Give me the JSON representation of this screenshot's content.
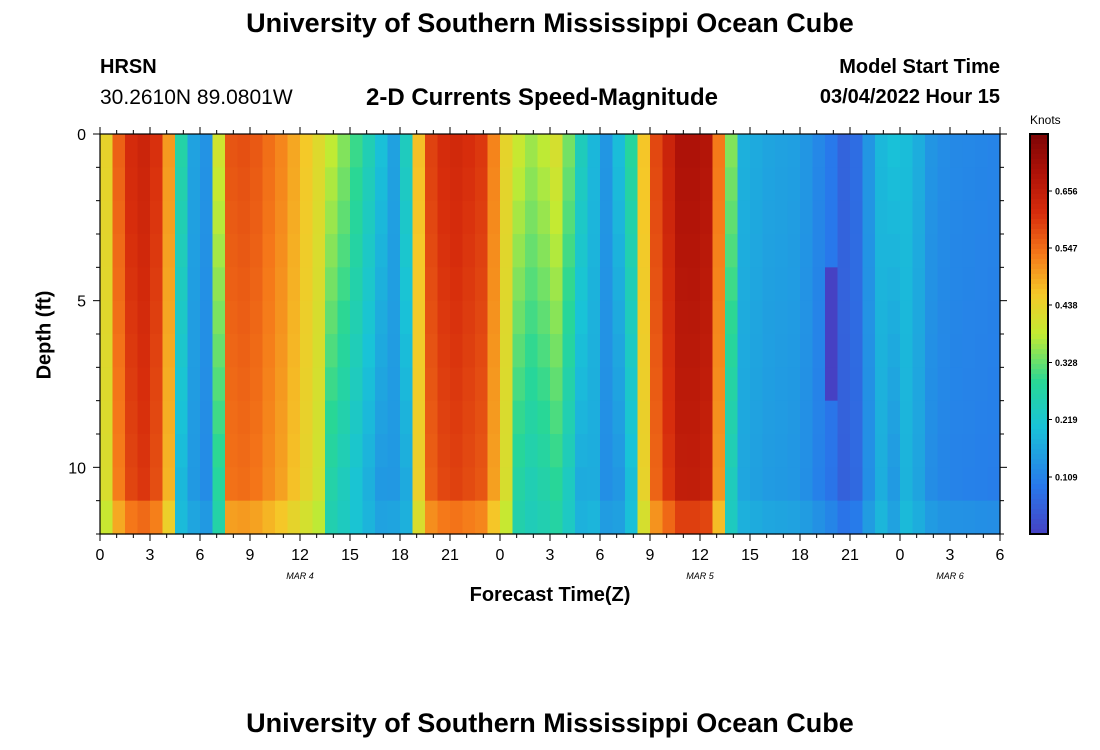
{
  "header": {
    "title": "University of Southern Mississippi Ocean Cube",
    "station": "HRSN",
    "coords": "30.2610N  89.0801W",
    "subtitle": "2-D Currents Speed-Magnitude",
    "model_label": "Model Start Time",
    "model_time": "03/04/2022 Hour 15"
  },
  "footer": {
    "title": "University of Southern Mississippi Ocean Cube"
  },
  "chart_data": {
    "type": "heatmap",
    "title": "2-D Currents Speed-Magnitude",
    "xlabel": "Forecast Time(Z)",
    "ylabel": "Depth (ft)",
    "x_range_hours": [
      0,
      54
    ],
    "x_ticks": [
      0,
      3,
      6,
      9,
      12,
      15,
      18,
      21,
      24,
      27,
      30,
      33,
      36,
      39,
      42,
      45,
      48,
      51,
      54
    ],
    "x_tick_labels": [
      "0",
      "3",
      "6",
      "9",
      "12",
      "15",
      "18",
      "21",
      "0",
      "3",
      "6",
      "9",
      "12",
      "15",
      "18",
      "21",
      "0",
      "3",
      "6"
    ],
    "date_labels": [
      {
        "label": "MAR 4",
        "hour": 12
      },
      {
        "label": "MAR 5",
        "hour": 36
      },
      {
        "label": "MAR 6",
        "hour": 51
      }
    ],
    "y_range_ft": [
      0,
      12
    ],
    "y_ticks": [
      0,
      5,
      10
    ],
    "y_tick_labels": [
      "0",
      "5",
      "10"
    ],
    "colorbar": {
      "unit": "Knots",
      "range": [
        0,
        0.765
      ],
      "ticks": [
        0.109,
        0.219,
        0.328,
        0.438,
        0.547,
        0.656
      ],
      "tick_labels": [
        "0.109",
        "0.219",
        "0.328",
        "0.438",
        "0.547",
        "0.656"
      ]
    },
    "surface_speed_by_hour": [
      {
        "hour": 0,
        "speed": 0.37
      },
      {
        "hour": 1,
        "speed": 0.55
      },
      {
        "hour": 2,
        "speed": 0.63
      },
      {
        "hour": 3,
        "speed": 0.64
      },
      {
        "hour": 4,
        "speed": 0.56
      },
      {
        "hour": 4.5,
        "speed": 0.34
      },
      {
        "hour": 5.5,
        "speed": 0.16
      },
      {
        "hour": 6.5,
        "speed": 0.13
      },
      {
        "hour": 7.5,
        "speed": 0.57
      },
      {
        "hour": 9,
        "speed": 0.58
      },
      {
        "hour": 11,
        "speed": 0.52
      },
      {
        "hour": 13,
        "speed": 0.43
      },
      {
        "hour": 15,
        "speed": 0.33
      },
      {
        "hour": 16.5,
        "speed": 0.23
      },
      {
        "hour": 18,
        "speed": 0.13
      },
      {
        "hour": 19.5,
        "speed": 0.58
      },
      {
        "hour": 21,
        "speed": 0.63
      },
      {
        "hour": 23,
        "speed": 0.6
      },
      {
        "hour": 24.5,
        "speed": 0.42
      },
      {
        "hour": 26,
        "speed": 0.36
      },
      {
        "hour": 27.5,
        "speed": 0.42
      },
      {
        "hour": 29,
        "speed": 0.23
      },
      {
        "hour": 30.5,
        "speed": 0.13
      },
      {
        "hour": 32,
        "speed": 0.3
      },
      {
        "hour": 33,
        "speed": 0.56
      },
      {
        "hour": 35,
        "speed": 0.7
      },
      {
        "hour": 36.5,
        "speed": 0.68
      },
      {
        "hour": 37.5,
        "speed": 0.45
      },
      {
        "hour": 38.5,
        "speed": 0.18
      },
      {
        "hour": 40,
        "speed": 0.16
      },
      {
        "hour": 42,
        "speed": 0.15
      },
      {
        "hour": 43,
        "speed": 0.12
      },
      {
        "hour": 44,
        "speed": 0.09
      },
      {
        "hour": 45,
        "speed": 0.04
      },
      {
        "hour": 46,
        "speed": 0.13
      },
      {
        "hour": 47,
        "speed": 0.2
      },
      {
        "hour": 48,
        "speed": 0.21
      },
      {
        "hour": 49,
        "speed": 0.18
      },
      {
        "hour": 50,
        "speed": 0.13
      },
      {
        "hour": 51,
        "speed": 0.12
      },
      {
        "hour": 54,
        "speed": 0.11
      }
    ],
    "annotations": [
      {
        "note": "minimum speed column near bottom-mid depth",
        "hour": 42,
        "depth_ft": 6
      }
    ]
  }
}
